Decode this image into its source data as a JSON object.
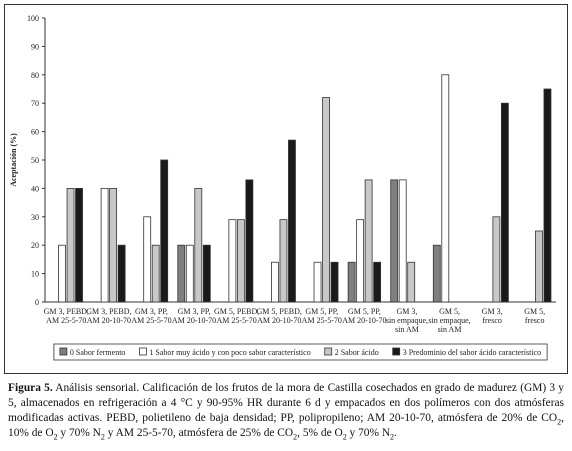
{
  "chart_data": {
    "type": "bar",
    "y_label": "Aceptación (%)",
    "categories": [
      [
        "GM 3, PEBD,",
        "AM 25-5-70"
      ],
      [
        "GM 3, PEBD,",
        "AM 20-10-70"
      ],
      [
        "GM 3, PP,",
        "AM 25-5-70"
      ],
      [
        "GM 3, PP,",
        "AM 20-10-70"
      ],
      [
        "GM 5, PEBD,",
        "AM 25-5-70"
      ],
      [
        "GM 5, PEBD,",
        "AM 20-10-70"
      ],
      [
        "GM 5, PP,",
        "AM 25-5-70"
      ],
      [
        "GM 5, PP,",
        "AM 20-10-70"
      ],
      [
        "GM 3,",
        "sin empaque,",
        "sin AM"
      ],
      [
        "GM 5,",
        "sin empaque,",
        "sin AM"
      ],
      [
        "GM 3,",
        "fresco"
      ],
      [
        "GM 5,",
        "fresco"
      ]
    ],
    "series": [
      {
        "name": "0 Sabor fermento",
        "color": "#7f7f7f",
        "values": [
          0,
          0,
          0,
          20,
          0,
          0,
          0,
          14,
          43,
          20,
          0,
          0
        ]
      },
      {
        "name": "1 Sabor muy ácido y con poco sabor característico",
        "color": "#ffffff",
        "values": [
          20,
          40,
          30,
          20,
          29,
          14,
          14,
          29,
          43,
          80,
          0,
          0
        ]
      },
      {
        "name": "2 Sabor ácido",
        "color": "#c8c8c8",
        "values": [
          40,
          40,
          20,
          40,
          29,
          29,
          72,
          43,
          14,
          0,
          30,
          25
        ]
      },
      {
        "name": "3 Predominio del sabor ácido característico",
        "color": "#1a1a1a",
        "values": [
          40,
          20,
          50,
          20,
          43,
          57,
          14,
          14,
          0,
          0,
          70,
          75
        ]
      }
    ],
    "ylim": [
      0,
      100
    ],
    "yticks": [
      0,
      10,
      20,
      30,
      40,
      50,
      60,
      70,
      80,
      90,
      100
    ],
    "grid": false,
    "legend": "bottom"
  },
  "caption": {
    "label": "Figura 5.",
    "parts": [
      {
        "text": " Análisis sensorial. Calificación de los frutos de la mora de Castilla cosechados en grado de madurez (GM) 3 y 5, almacenados en refrigeración a 4 °C y 90-95% HR durante 6 d y empacados en dos polímeros con dos atmósferas modificadas activas. PEBD, polietileno de baja densidad; PP, polipropileno; AM 20-10-70, atmósfera de 20% de CO"
      },
      {
        "text": "2",
        "sub": true
      },
      {
        "text": ", 10% de O"
      },
      {
        "text": "2",
        "sub": true
      },
      {
        "text": " y 70% N"
      },
      {
        "text": "2",
        "sub": true
      },
      {
        "text": " y AM 25-5-70, atmósfera de 25% de CO"
      },
      {
        "text": "2",
        "sub": true
      },
      {
        "text": ", 5% de O"
      },
      {
        "text": "2",
        "sub": true
      },
      {
        "text": " y 70% N"
      },
      {
        "text": "2",
        "sub": true
      },
      {
        "text": "."
      }
    ]
  }
}
